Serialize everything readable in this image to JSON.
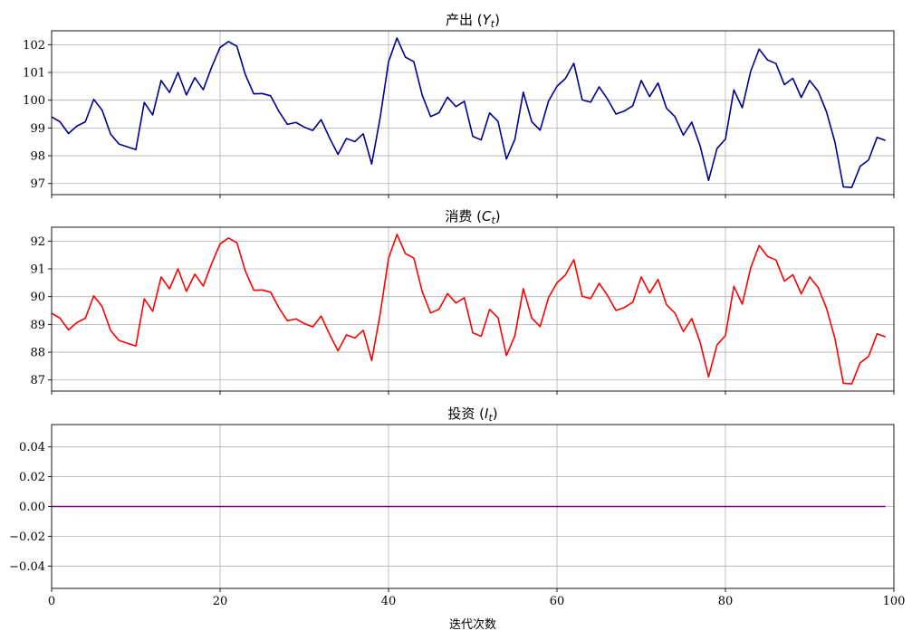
{
  "chart_data": [
    {
      "type": "line",
      "title_main": "产出",
      "title_symbol": "Y",
      "title_sub": "t",
      "xlim": [
        0,
        100
      ],
      "ylim": [
        96.6,
        102.5
      ],
      "x_ticks": [
        0,
        20,
        40,
        60,
        80,
        100
      ],
      "y_ticks": [
        97,
        98,
        99,
        100,
        101,
        102
      ],
      "y_tick_labels": [
        "97",
        "98",
        "99",
        "100",
        "101",
        "102"
      ],
      "grid": true,
      "color": "#00008b",
      "series": [
        {
          "x": [
            0,
            1,
            2,
            3,
            4,
            5,
            6,
            7,
            8,
            9,
            10,
            11,
            12,
            13,
            14,
            15,
            16,
            17,
            18,
            19,
            20,
            21,
            22,
            23,
            24,
            25,
            26,
            27,
            28,
            29,
            30,
            31,
            32,
            33,
            34,
            35,
            36,
            37,
            38,
            39,
            40,
            41,
            42,
            43,
            44,
            45,
            46,
            47,
            48,
            49,
            50,
            51,
            52,
            53,
            54,
            55,
            56,
            57,
            58,
            59,
            60,
            61,
            62,
            63,
            64,
            65,
            66,
            67,
            68,
            69,
            70,
            71,
            72,
            73,
            74,
            75,
            76,
            77,
            78,
            79,
            80,
            81,
            82,
            83,
            84,
            85,
            86,
            87,
            88,
            89,
            90,
            91,
            92,
            93,
            94,
            95,
            96,
            97,
            98,
            99
          ],
          "values": [
            99.4,
            99.22,
            98.8,
            99.07,
            99.22,
            100.03,
            99.64,
            98.78,
            98.42,
            98.32,
            98.22,
            99.92,
            99.47,
            100.71,
            100.28,
            101.0,
            100.19,
            100.81,
            100.38,
            101.19,
            101.9,
            102.11,
            101.94,
            100.92,
            100.23,
            100.24,
            100.16,
            99.59,
            99.13,
            99.2,
            99.03,
            98.91,
            99.3,
            98.64,
            98.05,
            98.62,
            98.51,
            98.79,
            97.7,
            99.36,
            101.38,
            102.24,
            101.55,
            101.39,
            100.18,
            99.41,
            99.55,
            100.11,
            99.77,
            99.96,
            98.7,
            98.57,
            99.54,
            99.24,
            97.88,
            98.59,
            100.29,
            99.23,
            98.92,
            99.97,
            100.5,
            100.78,
            101.33,
            100.01,
            99.93,
            100.48,
            100.04,
            99.5,
            99.61,
            99.8,
            100.71,
            100.13,
            100.62,
            99.71,
            99.41,
            98.74,
            99.21,
            98.35,
            97.11,
            98.26,
            98.6,
            100.37,
            99.73,
            101.04,
            101.84,
            101.45,
            101.32,
            100.56,
            100.79,
            100.1,
            100.71,
            100.33,
            99.58,
            98.49,
            96.88,
            96.86,
            97.62,
            97.85,
            98.66,
            98.55
          ]
        }
      ]
    },
    {
      "type": "line",
      "title_main": "消费",
      "title_symbol": "C",
      "title_sub": "t",
      "xlim": [
        0,
        100
      ],
      "ylim": [
        86.6,
        92.5
      ],
      "x_ticks": [
        0,
        20,
        40,
        60,
        80,
        100
      ],
      "y_ticks": [
        87,
        88,
        89,
        90,
        91,
        92
      ],
      "y_tick_labels": [
        "87",
        "88",
        "89",
        "90",
        "91",
        "92"
      ],
      "grid": true,
      "color": "#ff0000",
      "series": [
        {
          "x": [
            0,
            1,
            2,
            3,
            4,
            5,
            6,
            7,
            8,
            9,
            10,
            11,
            12,
            13,
            14,
            15,
            16,
            17,
            18,
            19,
            20,
            21,
            22,
            23,
            24,
            25,
            26,
            27,
            28,
            29,
            30,
            31,
            32,
            33,
            34,
            35,
            36,
            37,
            38,
            39,
            40,
            41,
            42,
            43,
            44,
            45,
            46,
            47,
            48,
            49,
            50,
            51,
            52,
            53,
            54,
            55,
            56,
            57,
            58,
            59,
            60,
            61,
            62,
            63,
            64,
            65,
            66,
            67,
            68,
            69,
            70,
            71,
            72,
            73,
            74,
            75,
            76,
            77,
            78,
            79,
            80,
            81,
            82,
            83,
            84,
            85,
            86,
            87,
            88,
            89,
            90,
            91,
            92,
            93,
            94,
            95,
            96,
            97,
            98,
            99
          ],
          "values": [
            89.4,
            89.22,
            88.8,
            89.07,
            89.22,
            90.03,
            89.64,
            88.78,
            88.42,
            88.32,
            88.22,
            89.92,
            89.47,
            90.71,
            90.28,
            91.0,
            90.19,
            90.81,
            90.38,
            91.19,
            91.9,
            92.11,
            91.94,
            90.92,
            90.23,
            90.24,
            90.16,
            89.59,
            89.13,
            89.2,
            89.03,
            88.91,
            89.3,
            88.64,
            88.05,
            88.62,
            88.51,
            88.79,
            87.7,
            89.36,
            91.38,
            92.24,
            91.55,
            91.39,
            90.18,
            89.41,
            89.55,
            90.11,
            89.77,
            89.96,
            88.7,
            88.57,
            89.54,
            89.24,
            87.88,
            88.59,
            90.29,
            89.23,
            88.92,
            89.97,
            90.5,
            90.78,
            91.33,
            90.01,
            89.93,
            90.48,
            90.04,
            89.5,
            89.61,
            89.8,
            90.71,
            90.13,
            90.62,
            89.71,
            89.41,
            88.74,
            89.21,
            88.35,
            87.11,
            88.26,
            88.6,
            90.37,
            89.73,
            91.04,
            91.84,
            91.45,
            91.32,
            90.56,
            90.79,
            90.1,
            90.71,
            90.33,
            89.58,
            88.49,
            86.88,
            86.86,
            87.62,
            87.85,
            88.66,
            88.55
          ]
        }
      ]
    },
    {
      "type": "line",
      "title_main": "投资",
      "title_symbol": "I",
      "title_sub": "t",
      "xlim": [
        0,
        100
      ],
      "ylim": [
        -0.055,
        0.055
      ],
      "x_ticks": [
        0,
        20,
        40,
        60,
        80,
        100
      ],
      "x_tick_labels": [
        "0",
        "20",
        "40",
        "60",
        "80",
        "100"
      ],
      "y_ticks": [
        -0.04,
        -0.02,
        0.0,
        0.02,
        0.04
      ],
      "y_tick_labels": [
        "−0.04",
        "−0.02",
        "0.00",
        "0.02",
        "0.04"
      ],
      "grid": true,
      "color": "#800080",
      "xlabel": "迭代次数",
      "series": [
        {
          "x": [
            0,
            99
          ],
          "values": [
            0,
            0
          ]
        }
      ]
    }
  ]
}
